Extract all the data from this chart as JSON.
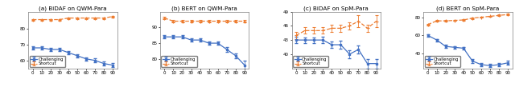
{
  "x": [
    0,
    10,
    20,
    30,
    40,
    50,
    60,
    70,
    80,
    90
  ],
  "panels": [
    {
      "title": "(a) BiDAF on QWM-Para",
      "challenging": [
        68,
        68,
        67,
        67,
        65,
        63,
        61,
        60,
        58,
        57
      ],
      "challenging_err": [
        1.0,
        0.8,
        0.8,
        0.8,
        0.9,
        1.0,
        1.0,
        1.2,
        1.2,
        1.3
      ],
      "shortcut": [
        86,
        86,
        86,
        86,
        87,
        87,
        87,
        87,
        87,
        88
      ],
      "shortcut_err": [
        0.5,
        0.5,
        0.5,
        0.5,
        0.5,
        0.5,
        0.5,
        0.5,
        0.5,
        0.5
      ],
      "ylim": [
        55,
        91
      ],
      "yticks": [
        60,
        70,
        80
      ]
    },
    {
      "title": "(b) BERT on QWM-Para",
      "challenging": [
        87,
        87,
        87,
        86,
        86,
        85,
        85,
        83,
        81,
        78
      ],
      "challenging_err": [
        0.5,
        0.5,
        0.5,
        0.5,
        0.5,
        0.6,
        0.6,
        0.7,
        0.8,
        1.5
      ],
      "shortcut": [
        93,
        92,
        92,
        92,
        92,
        92,
        92,
        92,
        92,
        92
      ],
      "shortcut_err": [
        0.3,
        0.3,
        0.3,
        0.3,
        0.3,
        0.3,
        0.3,
        0.3,
        0.3,
        0.3
      ],
      "ylim": [
        77,
        95
      ],
      "yticks": [
        80,
        85,
        90
      ]
    },
    {
      "title": "(c) BiDAF on SpM-Para",
      "challenging": [
        43,
        43,
        43,
        43,
        42,
        42,
        40,
        41,
        38,
        38
      ],
      "challenging_err": [
        0.7,
        0.6,
        0.6,
        0.7,
        0.7,
        0.8,
        0.9,
        0.9,
        1.0,
        1.0
      ],
      "shortcut": [
        44,
        45,
        45,
        45,
        45.5,
        45.5,
        46,
        47,
        45.5,
        47
      ],
      "shortcut_err": [
        0.8,
        0.7,
        0.7,
        0.7,
        0.7,
        0.8,
        0.8,
        1.3,
        0.8,
        1.2
      ],
      "ylim": [
        37,
        49
      ],
      "yticks": [
        40,
        43,
        46,
        49
      ]
    },
    {
      "title": "(d) BERT on SpM-Para",
      "challenging": [
        60,
        55,
        48,
        47,
        46,
        32,
        28,
        27,
        28,
        30
      ],
      "challenging_err": [
        1.0,
        1.2,
        1.5,
        1.5,
        1.5,
        2.0,
        1.5,
        1.5,
        1.5,
        2.0
      ],
      "shortcut": [
        72,
        76,
        76,
        76.5,
        77,
        79,
        80,
        81,
        82,
        83
      ],
      "shortcut_err": [
        0.8,
        0.7,
        0.7,
        0.7,
        0.7,
        0.8,
        0.8,
        0.8,
        0.8,
        0.8
      ],
      "ylim": [
        24,
        86
      ],
      "yticks": [
        40,
        60,
        80
      ]
    }
  ],
  "challenging_color": "#4472c4",
  "shortcut_color": "#ed7d31",
  "xlabel_ticks": [
    0,
    10,
    20,
    30,
    40,
    50,
    60,
    70,
    80,
    90
  ]
}
